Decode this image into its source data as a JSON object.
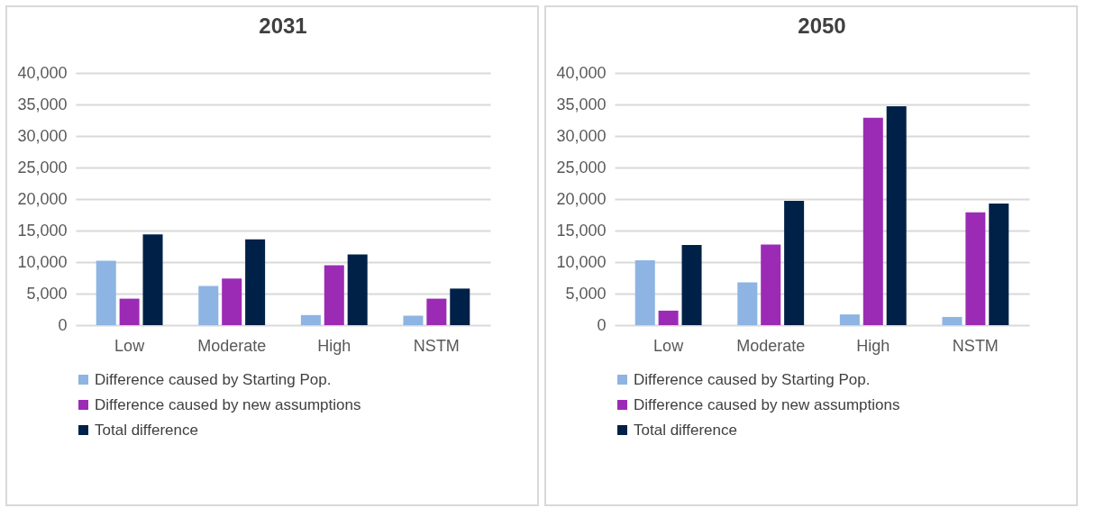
{
  "chart_data": [
    {
      "type": "bar",
      "title": "2031",
      "categories": [
        "Low",
        "Moderate",
        "High",
        "NSTM"
      ],
      "series": [
        {
          "name": "Difference caused by Starting Pop.",
          "color": "#8db4e2",
          "values": [
            10200,
            6200,
            1600,
            1500
          ]
        },
        {
          "name": "Difference caused by new assumptions",
          "color": "#9b2bb5",
          "values": [
            4200,
            7400,
            9500,
            4200
          ]
        },
        {
          "name": "Total difference",
          "color": "#002147",
          "values": [
            14400,
            13600,
            11200,
            5800
          ]
        }
      ],
      "ylim": [
        0,
        40000
      ],
      "yticks": [
        0,
        {
          "value": 5000,
          "label": "5,000"
        },
        {
          "value": 10000,
          "label": "10,000"
        },
        {
          "value": 15000,
          "label": "15,000"
        },
        {
          "value": 20000,
          "label": "20,000"
        },
        {
          "value": 25000,
          "label": "25,000"
        },
        {
          "value": 30000,
          "label": "30,000"
        },
        {
          "value": 35000,
          "label": "35,000"
        },
        {
          "value": 40000,
          "label": "40,000"
        }
      ],
      "grid": "y",
      "legend": "bottom"
    },
    {
      "type": "bar",
      "title": "2050",
      "categories": [
        "Low",
        "Moderate",
        "High",
        "NSTM"
      ],
      "series": [
        {
          "name": "Difference caused by Starting Pop.",
          "color": "#8db4e2",
          "values": [
            10300,
            6800,
            1700,
            1300
          ]
        },
        {
          "name": "Difference caused by new assumptions",
          "color": "#9b2bb5",
          "values": [
            2300,
            12800,
            32900,
            17900
          ]
        },
        {
          "name": "Total difference",
          "color": "#002147",
          "values": [
            12700,
            19700,
            34700,
            19300
          ]
        }
      ],
      "ylim": [
        0,
        40000
      ],
      "yticks": [
        0,
        {
          "value": 5000,
          "label": "5,000"
        },
        {
          "value": 10000,
          "label": "10,000"
        },
        {
          "value": 15000,
          "label": "15,000"
        },
        {
          "value": 20000,
          "label": "20,000"
        },
        {
          "value": 25000,
          "label": "25,000"
        },
        {
          "value": 30000,
          "label": "30,000"
        },
        {
          "value": 35000,
          "label": "35,000"
        },
        {
          "value": 40000,
          "label": "40,000"
        }
      ],
      "grid": "y",
      "legend": "bottom"
    }
  ]
}
